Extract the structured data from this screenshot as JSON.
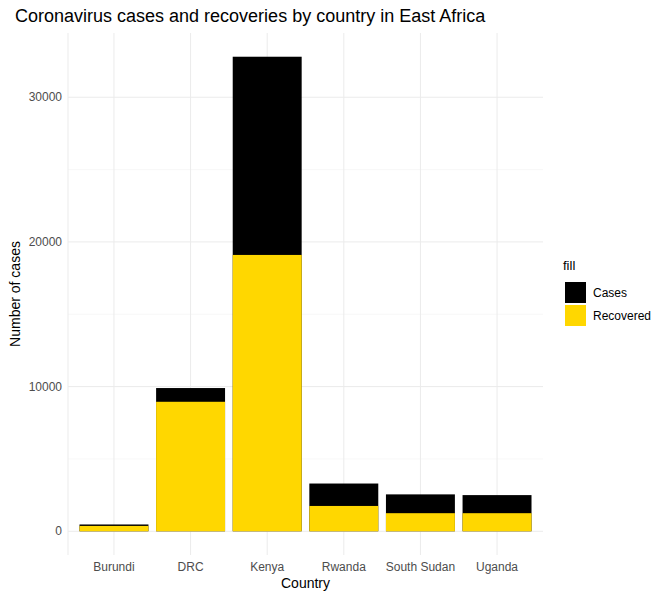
{
  "chart_data": {
    "type": "bar",
    "title": "Coronavirus cases and recoveries by country in East Africa",
    "x_label": "Country",
    "y_label": "Number of cases",
    "legend_title": "fill",
    "categories": [
      "Burundi",
      "DRC",
      "Kenya",
      "Rwanda",
      "South Sudan",
      "Uganda"
    ],
    "series": [
      {
        "name": "Cases",
        "color": "#000000",
        "values": [
          470,
          9900,
          32800,
          3300,
          2550,
          2500
        ]
      },
      {
        "name": "Recovered",
        "color": "#FFD700",
        "values": [
          370,
          8950,
          19100,
          1750,
          1250,
          1250
        ]
      }
    ],
    "stacked": false,
    "ylim": [
      -1640,
      34440
    ],
    "yticks": [
      0,
      10000,
      20000,
      30000
    ],
    "grid": true,
    "legend": "right"
  }
}
